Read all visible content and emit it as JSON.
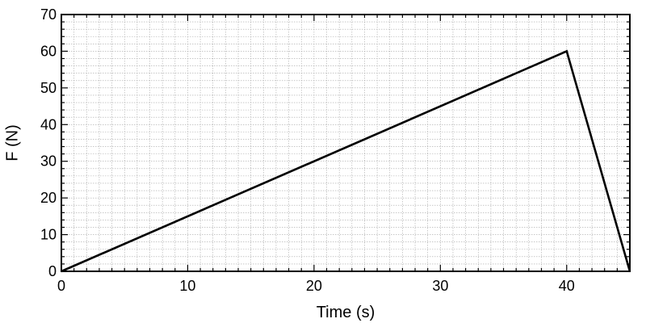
{
  "chart_data": {
    "type": "line",
    "title": "",
    "xlabel": "Time (s)",
    "ylabel": "F (N)",
    "xlim": [
      0,
      45
    ],
    "ylim": [
      0,
      70
    ],
    "xticks": [
      0,
      10,
      20,
      30,
      40
    ],
    "yticks": [
      0,
      10,
      20,
      30,
      40,
      50,
      60,
      70
    ],
    "grid": true,
    "series": [
      {
        "x": [
          0,
          40,
          45
        ],
        "y": [
          0,
          60,
          0
        ]
      }
    ]
  }
}
